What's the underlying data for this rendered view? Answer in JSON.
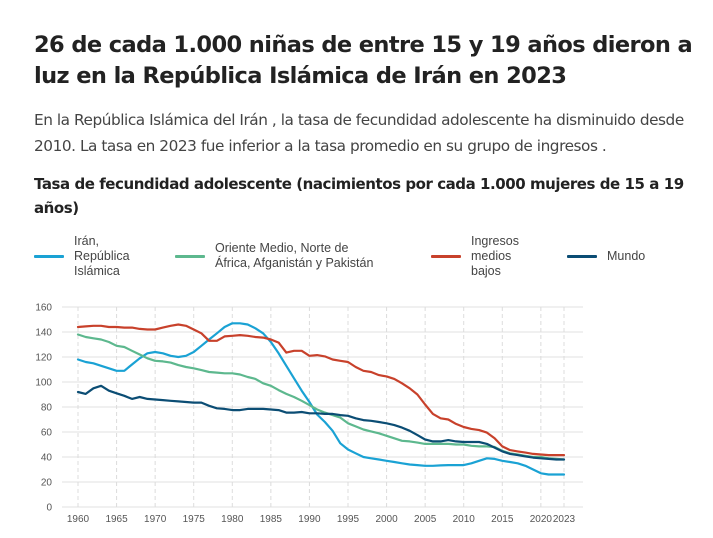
{
  "header": {
    "title": "26 de cada 1.000 niñas de entre 15 y 19 años dieron a luz en la República Islámica de Irán en 2023",
    "subtitle": "En la República Islámica del Irán , la tasa de fecundidad adolescente ha disminuido desde 2010. La tasa en 2023 fue inferior a la tasa promedio en su grupo de ingresos ."
  },
  "chart_data": {
    "type": "line",
    "title": "Tasa de fecundidad adolescente (nacimientos por cada 1.000 mujeres de 15 a 19 años)",
    "xlabel": "",
    "ylabel": "",
    "xlim": [
      1960,
      2023
    ],
    "ylim": [
      0,
      160
    ],
    "grid": true,
    "legend_position": "top",
    "x_ticks": [
      1960,
      1965,
      1970,
      1975,
      1980,
      1985,
      1990,
      1995,
      2000,
      2005,
      2010,
      2015,
      2020,
      2023
    ],
    "y_ticks": [
      0,
      20,
      40,
      60,
      80,
      100,
      120,
      140,
      160
    ],
    "x": [
      1960,
      1961,
      1962,
      1963,
      1964,
      1965,
      1966,
      1967,
      1968,
      1969,
      1970,
      1971,
      1972,
      1973,
      1974,
      1975,
      1976,
      1977,
      1978,
      1979,
      1980,
      1981,
      1982,
      1983,
      1984,
      1985,
      1986,
      1987,
      1988,
      1989,
      1990,
      1991,
      1992,
      1993,
      1994,
      1995,
      1996,
      1997,
      1998,
      1999,
      2000,
      2001,
      2002,
      2003,
      2004,
      2005,
      2006,
      2007,
      2008,
      2009,
      2010,
      2011,
      2012,
      2013,
      2014,
      2015,
      2016,
      2017,
      2018,
      2019,
      2020,
      2021,
      2022,
      2023
    ],
    "series": [
      {
        "name": "Irán, República Islámica",
        "color": "#1AA2D4",
        "values": [
          118,
          116,
          115,
          113,
          111,
          109,
          109,
          114,
          119,
          123,
          124,
          123,
          121,
          120,
          121,
          124,
          129,
          134,
          139,
          144,
          147,
          147,
          146,
          143,
          139,
          132,
          123,
          113,
          103,
          93,
          84,
          74,
          68,
          61,
          51,
          46,
          43,
          40,
          39,
          38,
          37,
          36,
          35,
          34,
          33.5,
          33,
          33,
          33.3,
          33.5,
          33.5,
          33.5,
          35,
          37,
          39,
          38.5,
          37,
          36,
          35,
          33,
          30,
          27,
          26,
          26,
          26
        ]
      },
      {
        "name": "Oriente Medio, Norte de África, Afganistán y Pakistán",
        "color": "#5DB88E",
        "values": [
          138,
          136,
          135,
          134,
          132,
          129,
          128,
          125,
          122,
          119,
          117,
          116.5,
          115.5,
          113.5,
          112,
          111,
          109.5,
          108,
          107.5,
          107,
          107,
          106,
          104,
          102.5,
          99,
          97,
          93.5,
          90.5,
          88,
          85,
          81.5,
          78,
          75.5,
          73.5,
          71.5,
          67,
          64.5,
          62,
          60.5,
          59,
          57,
          55,
          53,
          52.5,
          51.5,
          50.5,
          50.5,
          50.5,
          50.5,
          50,
          50,
          49,
          48.5,
          48.5,
          48,
          45,
          43,
          42,
          41,
          40,
          40,
          39,
          38.5,
          38
        ]
      },
      {
        "name": "Ingresos medios bajos",
        "color": "#C8412B",
        "values": [
          144,
          144.5,
          145,
          145,
          144,
          144,
          143.5,
          143.5,
          142.5,
          142,
          142,
          143.5,
          145,
          146,
          145,
          142,
          139,
          133,
          133,
          136.5,
          137,
          137.5,
          137,
          136,
          135.5,
          134,
          131.5,
          123.5,
          125,
          125,
          121,
          121.5,
          120.5,
          118,
          117,
          116,
          112,
          109,
          108,
          105.5,
          104.5,
          102.5,
          99,
          95,
          90,
          82,
          74.5,
          71,
          70,
          66.5,
          64,
          62.5,
          61.5,
          59.5,
          55,
          48.5,
          45.5,
          44.5,
          43.5,
          42.5,
          42,
          41.5,
          41.5,
          41.5
        ]
      },
      {
        "name": "Mundo",
        "color": "#0B4D74",
        "values": [
          92,
          90.5,
          95,
          97,
          93,
          91,
          89,
          86.5,
          88,
          86.5,
          86,
          85.5,
          85,
          84.5,
          84,
          83.5,
          83.5,
          81,
          79,
          78.5,
          77.5,
          77.5,
          78.5,
          78.5,
          78.5,
          78,
          77.5,
          75.5,
          75.5,
          76,
          75,
          75,
          74.5,
          74.5,
          73.5,
          73,
          71,
          69.5,
          69,
          68,
          67,
          65.5,
          63.5,
          61,
          57.5,
          54,
          52.5,
          52.5,
          53.5,
          52.5,
          52,
          52,
          52,
          50.5,
          47.5,
          44.5,
          42.5,
          41.5,
          40.5,
          39.5,
          39,
          38.5,
          38,
          38
        ]
      }
    ],
    "legend": [
      {
        "label_lines": [
          "Irán,",
          "República",
          "Islámica"
        ],
        "color": "#1AA2D4"
      },
      {
        "label_lines": [
          "Oriente Medio, Norte de",
          "África, Afganistán y Pakistán"
        ],
        "color": "#5DB88E"
      },
      {
        "label_lines": [
          "Ingresos",
          "medios",
          "bajos"
        ],
        "color": "#C8412B"
      },
      {
        "label_lines": [
          "Mundo"
        ],
        "color": "#0B4D74"
      }
    ]
  }
}
